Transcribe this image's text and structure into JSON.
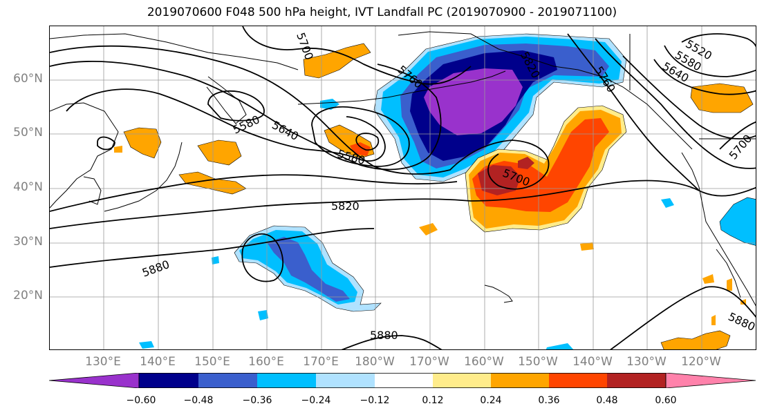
{
  "title": "2019070600 F048 500 hPa height, IVT Landfall PC (2019070900 - 2019071100)",
  "lat_labels": [
    "60°N",
    "50°N",
    "40°N",
    "30°N",
    "20°N"
  ],
  "lon_labels": [
    "130°E",
    "140°E",
    "150°E",
    "160°E",
    "170°E",
    "180°W",
    "170°W",
    "160°W",
    "150°W",
    "140°W",
    "130°W",
    "120°W"
  ],
  "contour_labels": [
    "5700",
    "5580",
    "5640",
    "5580",
    "5760",
    "5820",
    "5700",
    "5880",
    "5880",
    "5820",
    "5760",
    "5520",
    "5580",
    "5640",
    "5700",
    "5880"
  ],
  "colorbar": {
    "ticks": [
      "−0.60",
      "−0.48",
      "−0.36",
      "−0.24",
      "−0.12",
      "0.12",
      "0.24",
      "0.36",
      "0.48",
      "0.60"
    ],
    "colors": [
      "#9932cc",
      "#00008b",
      "#3a5fcd",
      "#00bfff",
      "#b0e2ff",
      "#ffffff",
      "#ffec8b",
      "#ffa500",
      "#ff4500",
      "#b22222",
      "#ff82ab"
    ]
  },
  "colors": {
    "neg_strong": "#9932cc",
    "neg_2": "#00008b",
    "neg_3": "#3a5fcd",
    "neg_4": "#00bfff",
    "neg_5": "#b0e2ff",
    "pos_1": "#ffec8b",
    "pos_2": "#ffa500",
    "pos_3": "#ff4500",
    "pos_4": "#b22222",
    "pos_5": "#ff82ab"
  }
}
